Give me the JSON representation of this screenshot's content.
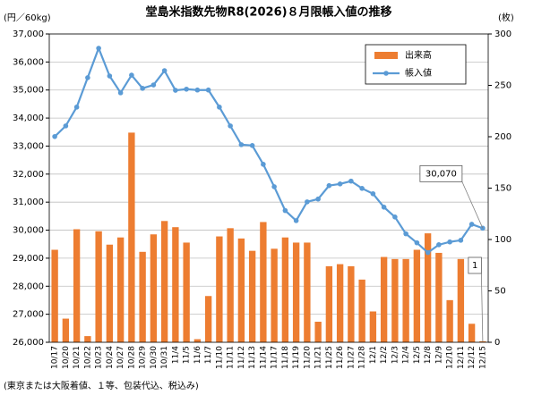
{
  "chart_data": {
    "type": "bar_line",
    "title": "堂島米指数先物R8(2026)８月限帳入値の推移",
    "y_label": "(円／60kg)",
    "y2_label": "(枚)",
    "footnote": "(東京または大阪着値、１等、包装代込、税込み)",
    "categories": [
      "10/17",
      "10/20",
      "10/21",
      "10/22",
      "10/23",
      "10/24",
      "10/27",
      "10/28",
      "10/29",
      "10/30",
      "10/31",
      "11/4",
      "11/5",
      "11/6",
      "11/7",
      "11/10",
      "11/11",
      "11/12",
      "11/13",
      "11/14",
      "11/17",
      "11/18",
      "11/19",
      "11/20",
      "11/21",
      "11/25",
      "11/26",
      "11/27",
      "11/28",
      "12/1",
      "12/2",
      "12/3",
      "12/4",
      "12/5",
      "12/8",
      "12/9",
      "12/10",
      "12/11",
      "12/12",
      "12/15"
    ],
    "series": [
      {
        "name": "出来高",
        "kind": "bar",
        "axis": "y2",
        "color": "#ed7d31",
        "values": [
          90,
          23,
          110,
          6,
          108,
          95,
          102,
          204,
          88,
          105,
          118,
          112,
          97,
          3,
          45,
          103,
          111,
          101,
          89,
          117,
          91,
          102,
          97,
          97,
          20,
          74,
          76,
          74,
          61,
          30,
          83,
          81,
          81,
          90,
          106,
          87,
          41,
          81,
          18,
          1
        ],
        "value_labels": {
          "39": "1"
        }
      },
      {
        "name": "帳入値",
        "kind": "line",
        "axis": "y",
        "color": "#5b9bd5",
        "values": [
          33340,
          33720,
          34390,
          35440,
          36490,
          35500,
          34900,
          35530,
          35060,
          35180,
          35690,
          34990,
          35030,
          35000,
          35000,
          34390,
          33720,
          33050,
          33020,
          32350,
          31550,
          30700,
          30340,
          31010,
          31110,
          31590,
          31650,
          31750,
          31490,
          31300,
          30820,
          30470,
          29870,
          29550,
          29200,
          29480,
          29580,
          29640,
          30210,
          30070
        ],
        "value_labels": {
          "39": "30,070"
        }
      }
    ],
    "ylim": [
      26000,
      37000
    ],
    "yticks": [
      {
        "value": 26000,
        "label": "26,000"
      },
      {
        "value": 27000,
        "label": "27,000"
      },
      {
        "value": 28000,
        "label": "28,000"
      },
      {
        "value": 29000,
        "label": "29,000"
      },
      {
        "value": 30000,
        "label": "30,000"
      },
      {
        "value": 31000,
        "label": "31,000"
      },
      {
        "value": 32000,
        "label": "32,000"
      },
      {
        "value": 33000,
        "label": "33,000"
      },
      {
        "value": 34000,
        "label": "34,000"
      },
      {
        "value": 35000,
        "label": "35,000"
      },
      {
        "value": 36000,
        "label": "36,000"
      },
      {
        "value": 37000,
        "label": "37,000"
      }
    ],
    "y2lim": [
      0,
      300
    ],
    "y2ticks": [
      0,
      50,
      100,
      150,
      200,
      250,
      300
    ],
    "grid": true,
    "legend": "upper right"
  }
}
